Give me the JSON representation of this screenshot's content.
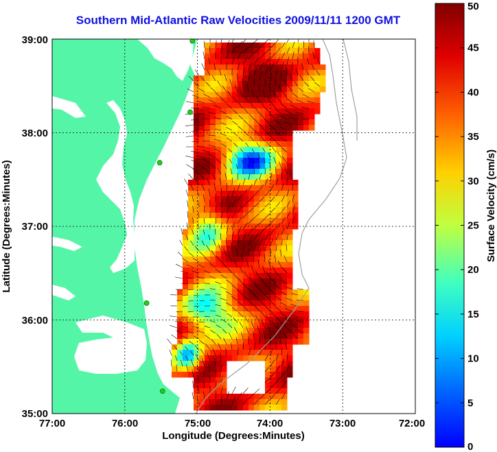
{
  "title": "Southern Mid-Atlantic Raw Velocities 2009/11/11 1200 GMT",
  "x_axis": {
    "label": "Longitude (Degrees:Minutes)",
    "ticks": [
      "77:00",
      "76:00",
      "75:00",
      "74:00",
      "73:00",
      "72:00"
    ]
  },
  "y_axis": {
    "label": "Latitude (Degrees:Minutes)",
    "ticks": [
      "39:00",
      "38:00",
      "37:00",
      "36:00",
      "35:00"
    ]
  },
  "colorbar": {
    "label": "Surface Velocity (cm/s)",
    "ticks": [
      "50",
      "45",
      "40",
      "35",
      "30",
      "25",
      "20",
      "15",
      "10",
      "5",
      "0"
    ],
    "range": [
      0,
      50
    ],
    "colormap": "jet"
  },
  "colors": {
    "land": "#55f5a8",
    "title": "#1010e0",
    "station": "#22cc22"
  },
  "extent": {
    "lon": [
      -77,
      -72
    ],
    "lat": [
      35,
      39
    ]
  },
  "stations": [
    {
      "lon": -75.07,
      "lat": 38.98
    },
    {
      "lon": -75.1,
      "lat": 38.22
    },
    {
      "lon": -75.52,
      "lat": 37.68
    },
    {
      "lon": -75.7,
      "lat": 36.18
    },
    {
      "lon": -75.48,
      "lat": 35.24
    }
  ]
}
